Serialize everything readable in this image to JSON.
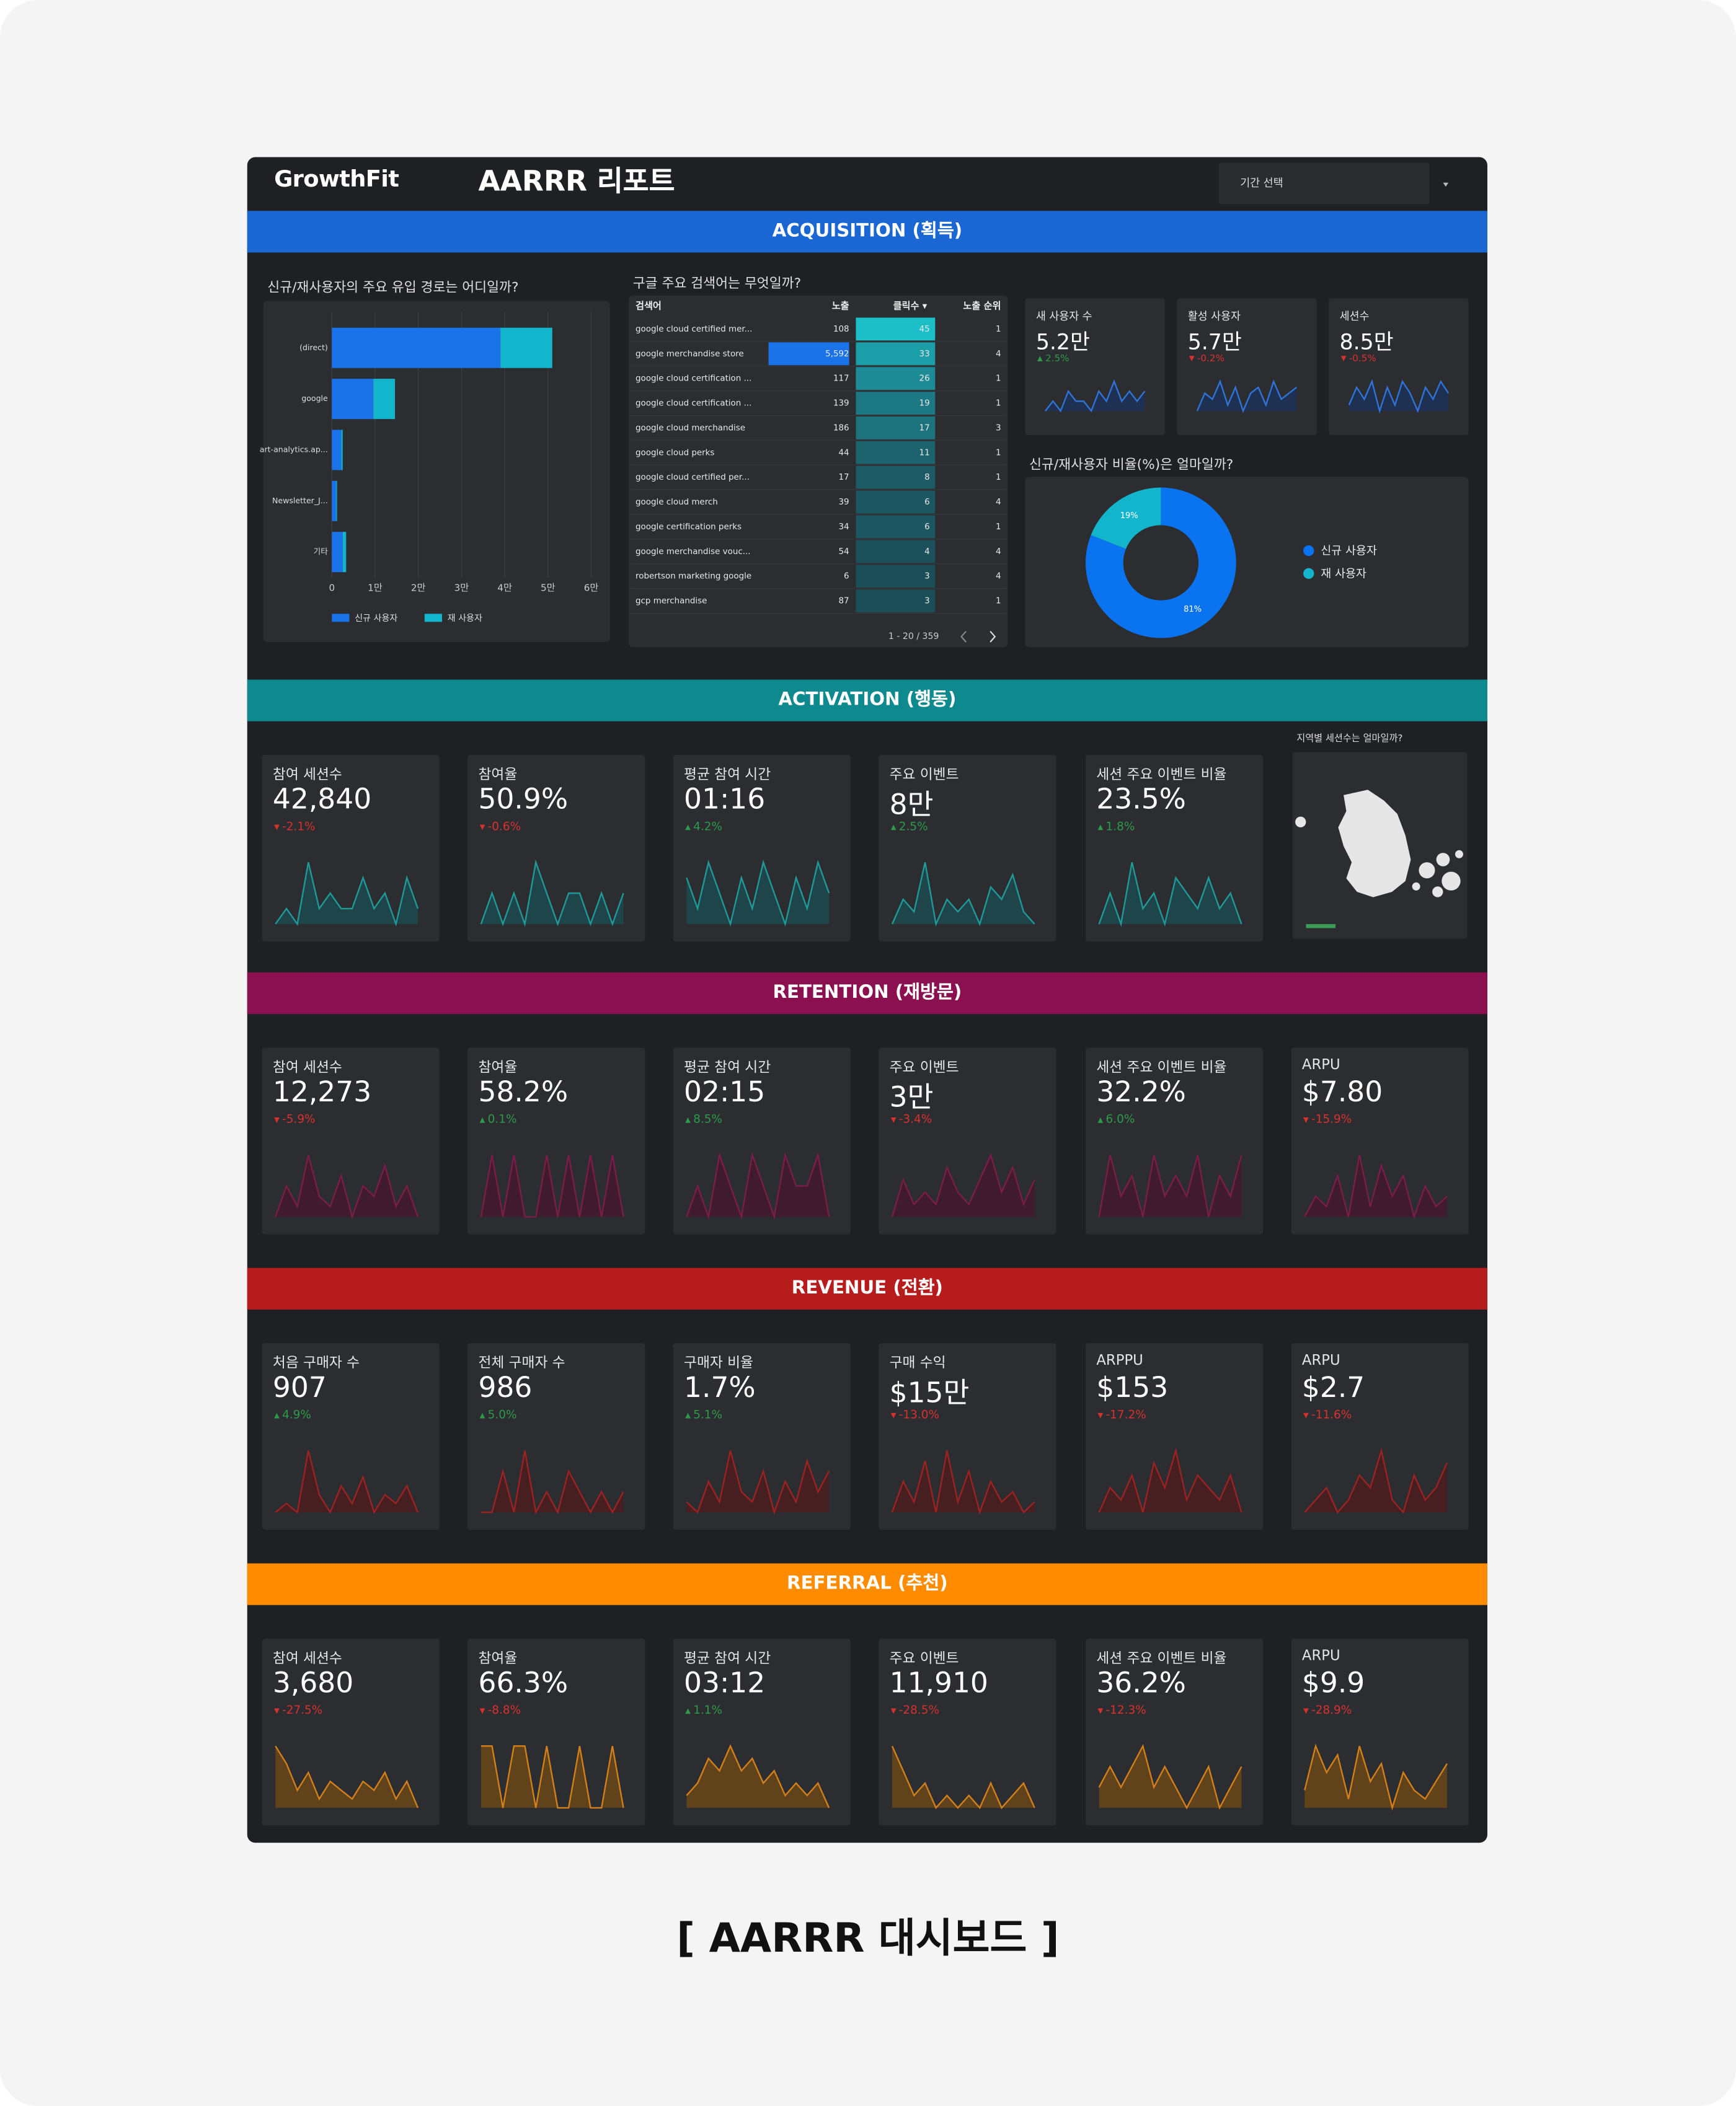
{
  "header": {
    "logo": "GrowthFit",
    "title": "AARRR 리포트",
    "period_select": "기간 선택"
  },
  "acquisition": {
    "title": "ACQUISITION (획득)",
    "color": "#1a66d2",
    "spark_color": "#2f74d8",
    "spark_fill": "#1c3358",
    "channel_chart": {
      "type": "bar",
      "orientation": "horizontal",
      "stacked": true,
      "title": "신규/재사용자의 주요 유입 경로는 어디일까?",
      "categories": [
        "(direct)",
        "google",
        "art-analytics.ap...",
        "Newsletter_J...",
        "기타"
      ],
      "series": [
        {
          "name": "신규 사용자",
          "color": "#1a73e8",
          "values": [
            39000,
            9600,
            2200,
            1000,
            2500
          ]
        },
        {
          "name": "재 사용자",
          "color": "#12b5cb",
          "values": [
            12000,
            5000,
            300,
            200,
            800
          ]
        }
      ],
      "xlim": [
        0,
        60000
      ],
      "xticks": [
        0,
        {
          "value": 10000,
          "label": "1만"
        },
        {
          "value": 20000,
          "label": "2만"
        },
        {
          "value": 30000,
          "label": "3만"
        },
        {
          "value": 40000,
          "label": "4만"
        },
        {
          "value": 50000,
          "label": "5만"
        },
        {
          "value": 60000,
          "label": "6만"
        }
      ],
      "grid": true
    },
    "search_table": {
      "title": "구글 주요 검색어는 무엇일까?",
      "columns": [
        "검색어",
        "노출",
        "클릭수 ▾",
        "노출 순위"
      ],
      "rows": [
        [
          "google cloud certified mer...",
          "108",
          "45",
          "1"
        ],
        [
          "google merchandise store",
          "5,592",
          "33",
          "4"
        ],
        [
          "google cloud certification ...",
          "117",
          "26",
          "1"
        ],
        [
          "google cloud certification ...",
          "139",
          "19",
          "1"
        ],
        [
          "google cloud merchandise",
          "186",
          "17",
          "3"
        ],
        [
          "google cloud perks",
          "44",
          "11",
          "1"
        ],
        [
          "google cloud certified per...",
          "17",
          "8",
          "1"
        ],
        [
          "google cloud merch",
          "39",
          "6",
          "4"
        ],
        [
          "google certification perks",
          "34",
          "6",
          "1"
        ],
        [
          "google merchandise vouc...",
          "54",
          "4",
          "4"
        ],
        [
          "robertson marketing google",
          "6",
          "3",
          "4"
        ],
        [
          "gcp merchandise",
          "87",
          "3",
          "1"
        ]
      ],
      "pagination": "1 - 20 / 359"
    },
    "cards": [
      {
        "label": "새 사용자 수",
        "value": "5.2만",
        "delta": "2.5%",
        "spark": [
          4,
          5,
          4,
          6,
          5,
          5,
          4,
          6,
          5,
          7,
          5,
          6,
          5,
          6
        ]
      },
      {
        "label": "활성 사용자",
        "value": "5.7만",
        "delta": "-0.2%",
        "spark": [
          3,
          6,
          5,
          8,
          4,
          7,
          3,
          6,
          7,
          4,
          8,
          5,
          6,
          7
        ]
      },
      {
        "label": "세션수",
        "value": "8.5만",
        "delta": "-0.5%",
        "spark": [
          4,
          7,
          5,
          8,
          3,
          7,
          4,
          8,
          6,
          3,
          7,
          5,
          8,
          6
        ]
      }
    ],
    "ratio_chart": {
      "type": "pie",
      "donut": true,
      "title": "신규/재사용자 비율(%)은 얼마일까?",
      "categories": [
        "신규 사용자",
        "재 사용자"
      ],
      "values": [
        81,
        19
      ],
      "value_labels": [
        "81%",
        "19%"
      ],
      "colors": [
        "#0a74f0",
        "#12b5cb"
      ]
    }
  },
  "sections": [
    {
      "title": "ACTIVATION (행동)",
      "color": "#0e8a8f",
      "spark_color": "#1f9a98",
      "spark_fill": "#1c4a4d",
      "map_title": "지역별 세션수는 얼마일까?",
      "cards": [
        {
          "label": "참여 세션수",
          "value": "42,840",
          "delta": "-2.1%",
          "spark": [
            3,
            4,
            3,
            7,
            4,
            5,
            4,
            4,
            6,
            4,
            5,
            3,
            6,
            4
          ]
        },
        {
          "label": "참여율",
          "value": "50.9%",
          "delta": "-0.6%",
          "spark": [
            5,
            6,
            5,
            6,
            5,
            7,
            6,
            5,
            6,
            6,
            5,
            6,
            5,
            6
          ]
        },
        {
          "label": "평균 참여 시간",
          "value": "01:16",
          "delta": "4.2%",
          "spark": [
            7,
            5,
            8,
            6,
            4,
            7,
            5,
            8,
            6,
            4,
            7,
            5,
            8,
            6
          ]
        },
        {
          "label": "주요 이벤트",
          "value": "8만",
          "delta": "2.5%",
          "spark": [
            2,
            4,
            3,
            7,
            2,
            4,
            3,
            4,
            2,
            5,
            4,
            6,
            3,
            2
          ]
        },
        {
          "label": "세션 주요 이벤트 비율",
          "value": "23.5%",
          "delta": "1.8%",
          "spark": [
            5,
            7,
            5,
            9,
            6,
            7,
            5,
            8,
            7,
            6,
            8,
            6,
            7,
            5
          ]
        }
      ]
    },
    {
      "title": "RETENTION (재방문)",
      "color": "#8a104f",
      "spark_color": "#7a1d48",
      "spark_fill": "#44192e",
      "cards": [
        {
          "label": "참여 세션수",
          "value": "12,273",
          "delta": "-5.9%",
          "spark": [
            3,
            6,
            4,
            9,
            5,
            4,
            7,
            3,
            6,
            5,
            8,
            4,
            6,
            3
          ]
        },
        {
          "label": "참여율",
          "value": "58.2%",
          "delta": "0.1%",
          "spark": [
            6,
            7,
            6,
            7,
            6,
            6,
            7,
            6,
            7,
            6,
            7,
            6,
            7,
            6
          ]
        },
        {
          "label": "평균 참여 시간",
          "value": "02:15",
          "delta": "8.5%",
          "spark": [
            4,
            5,
            4,
            6,
            5,
            4,
            6,
            5,
            4,
            6,
            5,
            5,
            6,
            4
          ]
        },
        {
          "label": "주요 이벤트",
          "value": "3만",
          "delta": "-3.4%",
          "spark": [
            1,
            4,
            2,
            3,
            2,
            5,
            3,
            2,
            4,
            6,
            3,
            5,
            2,
            4
          ]
        },
        {
          "label": "세션 주요 이벤트 비율",
          "value": "32.2%",
          "delta": "6.0%",
          "spark": [
            6,
            9,
            7,
            8,
            6,
            9,
            7,
            8,
            7,
            9,
            6,
            8,
            7,
            9
          ]
        },
        {
          "label": "ARPU",
          "value": "$7.80",
          "delta": "-15.9%",
          "spark": [
            2,
            4,
            3,
            6,
            2,
            8,
            3,
            7,
            4,
            6,
            2,
            5,
            3,
            4
          ]
        }
      ]
    },
    {
      "title": "REVENUE (전환)",
      "color": "#b71c1c",
      "spark_color": "#9c2323",
      "spark_fill": "#4c1d1f",
      "cards": [
        {
          "label": "처음 구매자 수",
          "value": "907",
          "delta": "4.9%",
          "spark": [
            2,
            3,
            2,
            9,
            4,
            2,
            5,
            3,
            6,
            2,
            4,
            3,
            5,
            2
          ]
        },
        {
          "label": "전체 구매자 수",
          "value": "986",
          "delta": "5.0%",
          "spark": [
            2,
            2,
            4,
            2,
            5,
            2,
            3,
            2,
            4,
            3,
            2,
            3,
            2,
            3
          ]
        },
        {
          "label": "구매자 비율",
          "value": "1.7%",
          "delta": "5.1%",
          "spark": [
            3,
            2,
            5,
            3,
            8,
            4,
            3,
            6,
            2,
            5,
            3,
            7,
            4,
            6
          ]
        },
        {
          "label": "구매 수익",
          "value": "$15만",
          "delta": "-13.0%",
          "spark": [
            2,
            5,
            3,
            7,
            2,
            8,
            3,
            6,
            2,
            5,
            3,
            4,
            2,
            3
          ]
        },
        {
          "label": "ARPPU",
          "value": "$153",
          "delta": "-17.2%",
          "spark": [
            3,
            5,
            4,
            6,
            3,
            7,
            5,
            8,
            4,
            6,
            5,
            4,
            6,
            3
          ]
        },
        {
          "label": "ARPU",
          "value": "$2.7",
          "delta": "-11.6%",
          "spark": [
            2,
            3,
            4,
            2,
            3,
            5,
            4,
            7,
            3,
            2,
            5,
            3,
            4,
            6
          ]
        }
      ]
    },
    {
      "title": "REFERRAL (추천)",
      "color": "#ff8c00",
      "spark_color": "#d4801a",
      "spark_fill": "#6a4617",
      "cards": [
        {
          "label": "참여 세션수",
          "value": "3,680",
          "delta": "-27.5%",
          "spark": [
            9,
            7,
            4,
            6,
            3,
            5,
            4,
            3,
            5,
            4,
            6,
            3,
            5,
            2
          ]
        },
        {
          "label": "참여율",
          "value": "66.3%",
          "delta": "-8.8%",
          "spark": [
            8,
            8,
            7,
            8,
            8,
            7,
            8,
            7,
            7,
            8,
            7,
            7,
            8,
            7
          ]
        },
        {
          "label": "평균 참여 시간",
          "value": "03:12",
          "delta": "1.1%",
          "spark": [
            3,
            4,
            6,
            5,
            7,
            5,
            6,
            4,
            5,
            3,
            4,
            3,
            4,
            2
          ]
        },
        {
          "label": "주요 이벤트",
          "value": "11,910",
          "delta": "-28.5%",
          "spark": [
            7,
            5,
            3,
            4,
            2,
            3,
            2,
            3,
            2,
            4,
            2,
            3,
            4,
            2
          ]
        },
        {
          "label": "세션 주요 이벤트 비율",
          "value": "36.2%",
          "delta": "-12.3%",
          "spark": [
            5,
            6,
            5,
            6,
            7,
            5,
            6,
            5,
            4,
            5,
            6,
            4,
            5,
            6
          ]
        },
        {
          "label": "ARPU",
          "value": "$9.9",
          "delta": "-28.9%",
          "spark": [
            4,
            9,
            6,
            8,
            3,
            9,
            5,
            7,
            2,
            6,
            4,
            3,
            5,
            7
          ]
        }
      ]
    }
  ],
  "caption": "[ AARRR 대시보드 ]"
}
